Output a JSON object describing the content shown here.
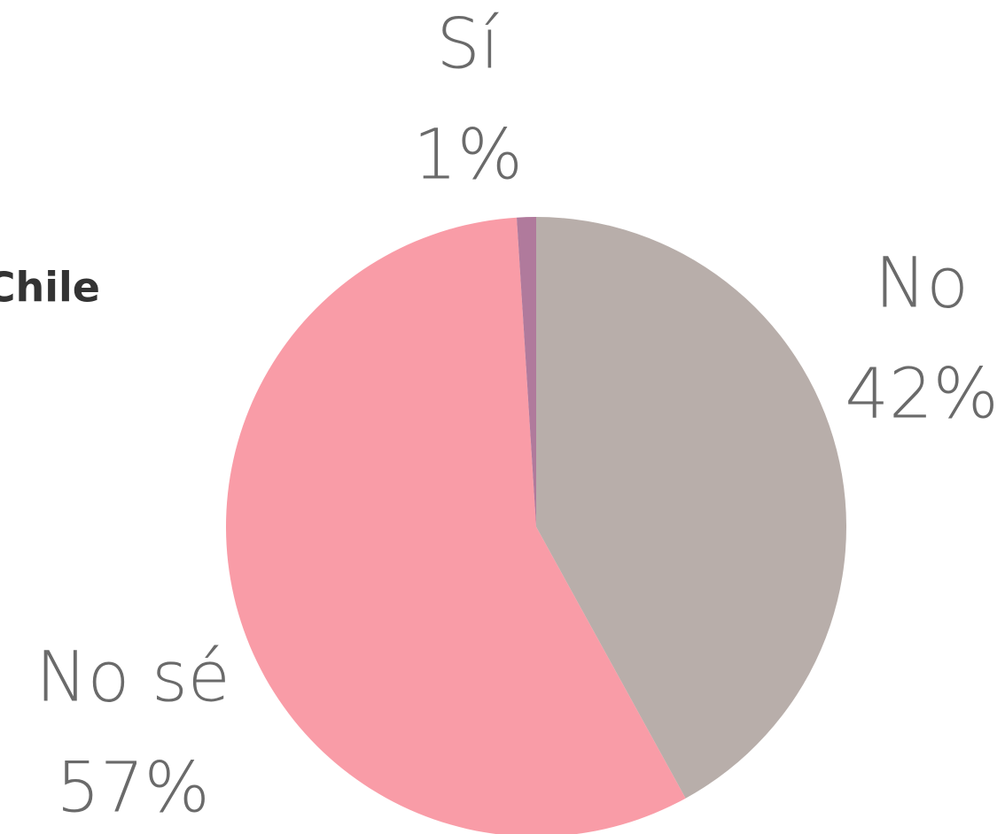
{
  "chart_data": {
    "type": "pie",
    "title": "Chile",
    "categories": [
      "No",
      "No sé",
      "Sí"
    ],
    "values": [
      42,
      57,
      1
    ],
    "value_labels": [
      "42%",
      "57%",
      "1%"
    ],
    "colors": [
      "#b8aeaa",
      "#f99ca7",
      "#b07a9c"
    ]
  }
}
